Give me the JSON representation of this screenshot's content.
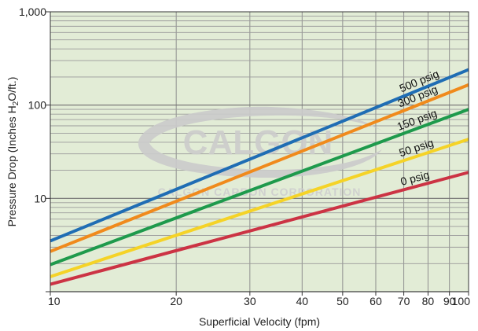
{
  "chart_data": {
    "type": "line",
    "title": "",
    "xlabel": "Superficial Velocity (fpm)",
    "ylabel": {
      "prefix": "Pressure Drop (Inches H",
      "sub": "2",
      "suffix": "O/ft.)"
    },
    "xscale": "log",
    "yscale": "log",
    "xlim": [
      10,
      100
    ],
    "ylim": [
      1,
      1000
    ],
    "grid": true,
    "background_color": "#e2ecd6",
    "x_ticks": [
      {
        "value": 10,
        "label": "10"
      },
      {
        "value": 20,
        "label": "20"
      },
      {
        "value": 30,
        "label": "30"
      },
      {
        "value": 40,
        "label": "40"
      },
      {
        "value": 50,
        "label": "50"
      },
      {
        "value": 60,
        "label": "60"
      },
      {
        "value": 70,
        "label": "70"
      },
      {
        "value": 80,
        "label": "80"
      },
      {
        "value": 90,
        "label": "90"
      },
      {
        "value": 100,
        "label": "100"
      }
    ],
    "y_ticks": [
      {
        "value": 10,
        "label": "10"
      },
      {
        "value": 100,
        "label": "100"
      },
      {
        "value": 1000,
        "label": "1,000"
      }
    ],
    "series": [
      {
        "name": "500 psig",
        "color": "#1f6db4",
        "x": [
          10,
          100
        ],
        "y": [
          3.5,
          240
        ]
      },
      {
        "name": "300 psig",
        "color": "#f08a1c",
        "x": [
          10,
          100
        ],
        "y": [
          2.7,
          165
        ]
      },
      {
        "name": "150 psig",
        "color": "#1e9a4c",
        "x": [
          10,
          100
        ],
        "y": [
          1.95,
          90
        ]
      },
      {
        "name": "50 psig",
        "color": "#f5d327",
        "x": [
          10,
          100
        ],
        "y": [
          1.45,
          43
        ]
      },
      {
        "name": "0 psig",
        "color": "#cc3344",
        "x": [
          10,
          100
        ],
        "y": [
          1.2,
          19
        ]
      }
    ]
  },
  "watermark": {
    "brand": "CALGON",
    "company": "CALGON CARBON CORPORATION"
  }
}
